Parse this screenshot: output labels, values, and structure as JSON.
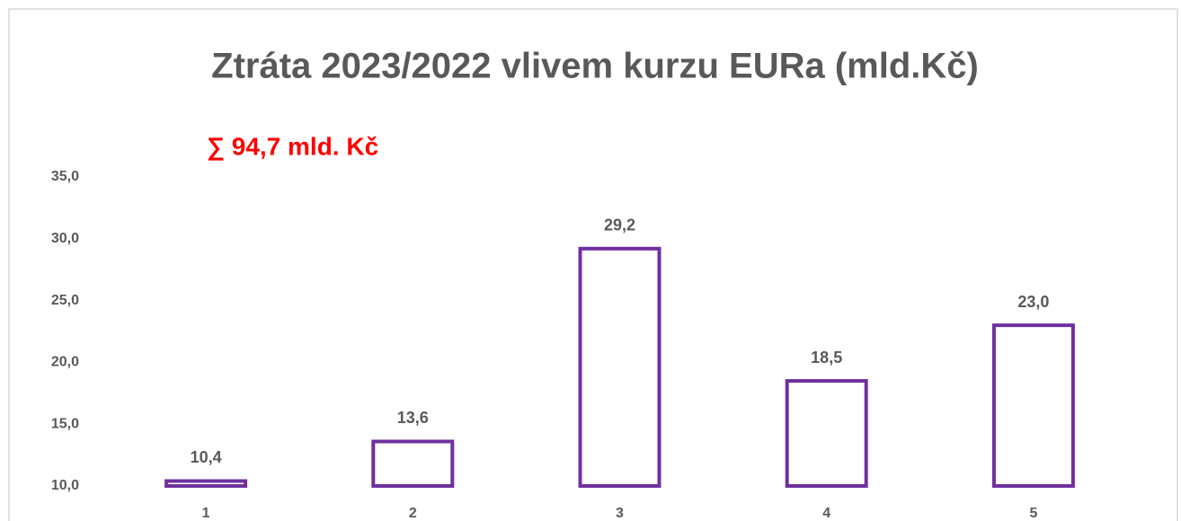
{
  "chart_data": {
    "type": "bar",
    "title": "Ztráta 2023/2022 vlivem kurzu EURa (mld.Kč)",
    "annotation": "∑ 94,7 mld. Kč",
    "categories": [
      "1",
      "2",
      "3",
      "4",
      "5"
    ],
    "values": [
      10.4,
      13.6,
      29.2,
      18.5,
      23.0
    ],
    "value_labels": [
      "10,4",
      "13,6",
      "29,2",
      "18,5",
      "23,0"
    ],
    "color": "#7030a0",
    "ylim": [
      10,
      35
    ],
    "yticks": [
      {
        "value": 10,
        "label": "10,0"
      },
      {
        "value": 15,
        "label": "15,0"
      },
      {
        "value": 20,
        "label": "20,0"
      },
      {
        "value": 25,
        "label": "25,0"
      },
      {
        "value": 30,
        "label": "30,0"
      },
      {
        "value": 35,
        "label": "35,0"
      }
    ],
    "grid": false
  }
}
